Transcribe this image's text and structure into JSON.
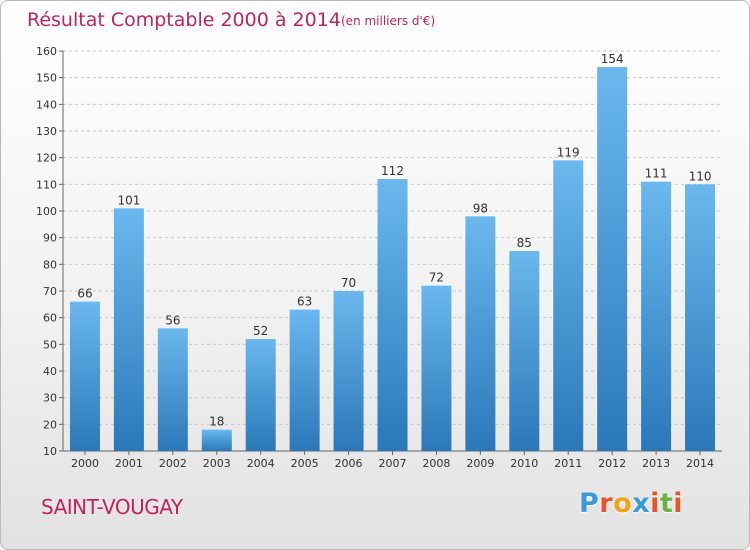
{
  "title": "Résultat Comptable 2000 à 2014",
  "subtitle": "(en milliers d'€)",
  "commune": "SAINT-VOUGAY",
  "logo": {
    "letters": [
      "P",
      "r",
      "o",
      "x",
      "i",
      "t",
      "i"
    ],
    "colors": [
      "#3a9ad9",
      "#e8532b",
      "#f2a516",
      "#3a9ad9",
      "#e8532b",
      "#6db33f",
      "#e8532b"
    ]
  },
  "colors": {
    "accent": "#c0245e",
    "bar_top": "#6ab8ee",
    "bar_bottom": "#2a78b8"
  },
  "chart_data": {
    "type": "bar",
    "categories": [
      "2000",
      "2001",
      "2002",
      "2003",
      "2004",
      "2005",
      "2006",
      "2007",
      "2008",
      "2009",
      "2010",
      "2011",
      "2012",
      "2013",
      "2014"
    ],
    "values": [
      66,
      101,
      56,
      18,
      52,
      63,
      70,
      112,
      72,
      98,
      85,
      119,
      154,
      111,
      110
    ],
    "title": "Résultat Comptable 2000 à 2014",
    "subtitle": "(en milliers d'€)",
    "xlabel": "",
    "ylabel": "",
    "ylim": [
      10,
      160
    ],
    "yticks": [
      10,
      20,
      30,
      40,
      50,
      60,
      70,
      80,
      90,
      100,
      110,
      120,
      130,
      140,
      150,
      160
    ],
    "grid": true,
    "legend": "none"
  }
}
